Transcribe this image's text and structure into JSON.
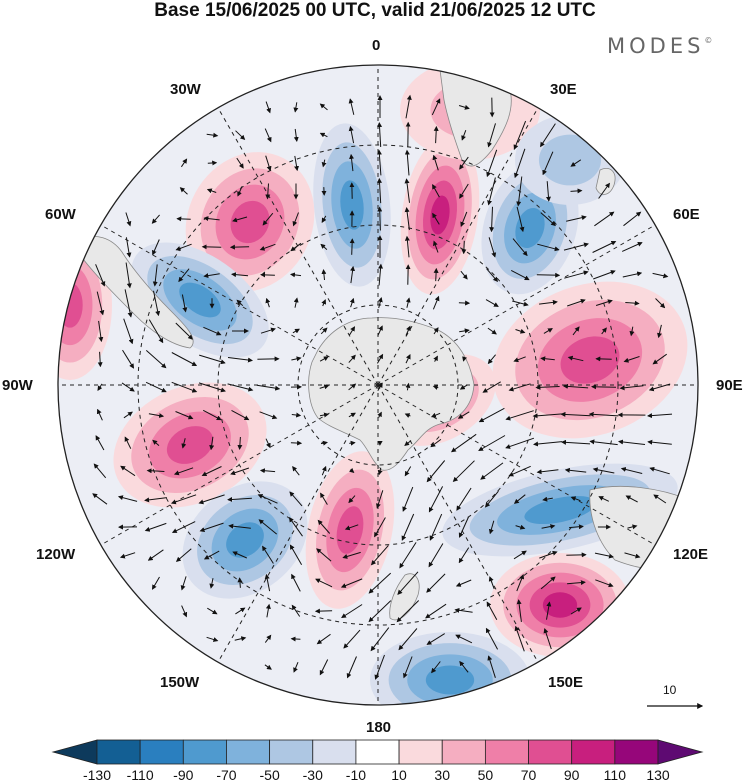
{
  "title": "Base 15/06/2025 00 UTC, valid 21/06/2025 12 UTC",
  "brand": "MODES",
  "brand_mark": "©",
  "longitude_labels": {
    "lon_0": "0",
    "lon_30e": "30E",
    "lon_60e": "60E",
    "lon_90e": "90E",
    "lon_120e": "120E",
    "lon_150e": "150E",
    "lon_180": "180",
    "lon_150w": "150W",
    "lon_120w": "120W",
    "lon_90w": "90W",
    "lon_60w": "60W",
    "lon_30w": "30W"
  },
  "reference_vector": {
    "value": "10"
  },
  "colorbar": {
    "labels": [
      "-130",
      "-110",
      "-90",
      "-70",
      "-50",
      "-30",
      "-10",
      "10",
      "30",
      "50",
      "70",
      "90",
      "110",
      "130"
    ],
    "colors": [
      "#0d3a5c",
      "#135f94",
      "#2a7fbf",
      "#4f9acf",
      "#7fb2dc",
      "#aec7e3",
      "#d9dfee",
      "#ffffff",
      "#fadadd",
      "#f5aec1",
      "#ef7fa8",
      "#e04f92",
      "#c81f7e",
      "#96067a",
      "#5e0a72"
    ]
  },
  "map_style": {
    "land": "#e8e8e8",
    "coast": "#888888",
    "grid": "#222222",
    "vector": "#111111"
  }
}
